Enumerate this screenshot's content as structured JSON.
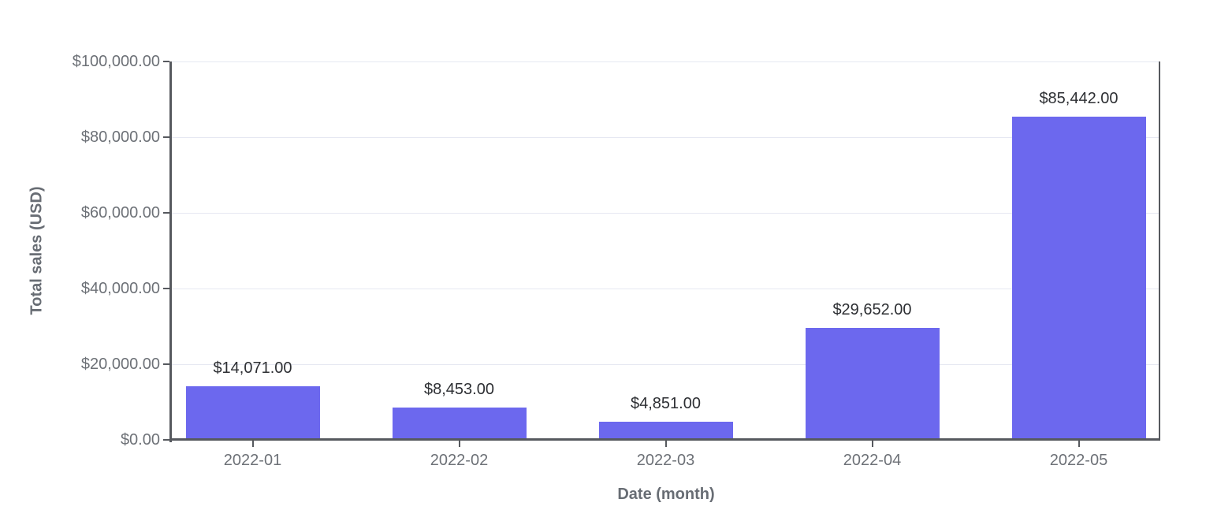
{
  "chart_data": {
    "type": "bar",
    "title": "",
    "xlabel": "Date (month)",
    "ylabel": "Total sales (USD)",
    "categories": [
      "2022-01",
      "2022-02",
      "2022-03",
      "2022-04",
      "2022-05"
    ],
    "values": [
      14071,
      8453,
      4851,
      29652,
      85442
    ],
    "value_labels": [
      "$14,071.00",
      "$8,453.00",
      "$4,851.00",
      "$29,652.00",
      "$85,442.00"
    ],
    "ylim": [
      0,
      100000
    ],
    "y_tick_values": [
      0,
      20000,
      40000,
      60000,
      80000,
      100000
    ],
    "y_tick_labels": [
      "$0.00",
      "$20,000.00",
      "$40,000.00",
      "$60,000.00",
      "$80,000.00",
      "$100,000.00"
    ],
    "grid": "horizontal",
    "legend": "none",
    "colors": {
      "bar": "#6c68ee",
      "gridline": "#e6e8f2",
      "axis_line": "#56595e",
      "tick_label": "#6d7177",
      "axis_title": "#686d74",
      "data_label": "#2d2f33",
      "background": "#ffffff"
    }
  }
}
